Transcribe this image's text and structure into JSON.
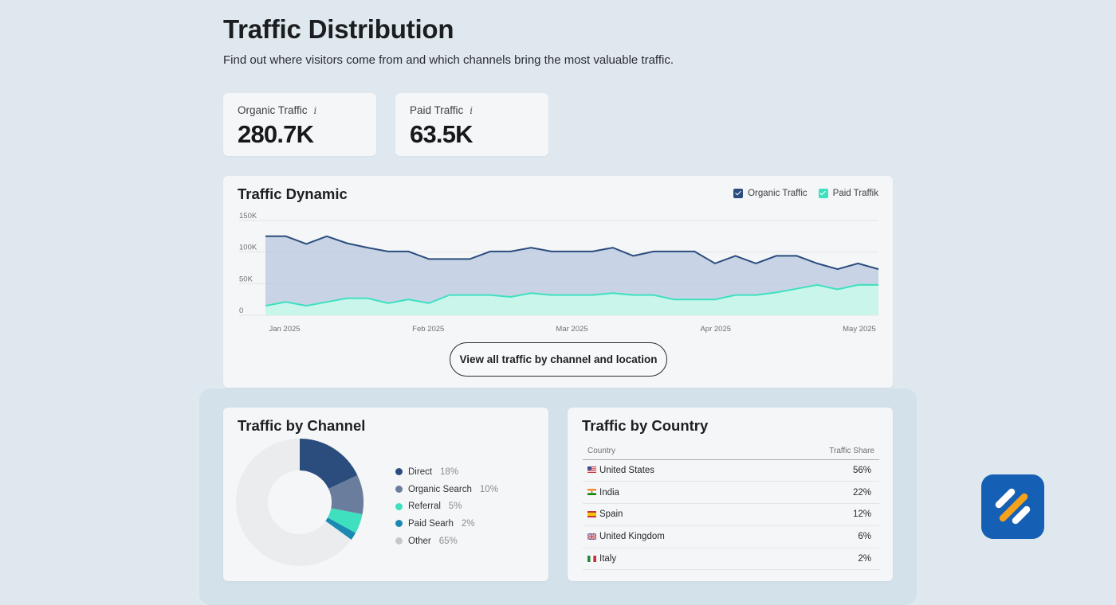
{
  "page": {
    "title": "Traffic Distribution",
    "subtitle": "Find out where visitors come from and which channels bring the most valuable traffic."
  },
  "kpis": [
    {
      "label": "Organic Traffic",
      "value": "280.7K",
      "icon": "info-icon"
    },
    {
      "label": "Paid Traffic",
      "value": "63.5K",
      "icon": "info-icon"
    }
  ],
  "traffic_dynamic": {
    "title": "Traffic Dynamic",
    "legend": [
      {
        "label": "Organic Traffic",
        "color": "#2b4d7e"
      },
      {
        "label": "Paid Traffik",
        "color": "#3ee0c0"
      }
    ],
    "view_button": "View all traffic by channel and location"
  },
  "channels": {
    "title": "Traffic by Channel",
    "items": [
      {
        "name": "Direct",
        "pct": "18%",
        "color": "#2b4d7e"
      },
      {
        "name": "Organic Search",
        "pct": "10%",
        "color": "#6b7d9c"
      },
      {
        "name": "Referral",
        "pct": "5%",
        "color": "#3ee0c0"
      },
      {
        "name": "Paid Searh",
        "pct": "2%",
        "color": "#1a8ab3"
      },
      {
        "name": "Other",
        "pct": "65%",
        "color": "#c4c7cb"
      }
    ]
  },
  "countries": {
    "title": "Traffic by Country",
    "col_country": "Country",
    "col_share": "Traffic Share",
    "rows": [
      {
        "flag": "us-flag-icon",
        "name": "United States",
        "share": "56%"
      },
      {
        "flag": "in-flag-icon",
        "name": "India",
        "share": "22%"
      },
      {
        "flag": "es-flag-icon",
        "name": "Spain",
        "share": "12%"
      },
      {
        "flag": "gb-flag-icon",
        "name": "United Kingdom",
        "share": "6%"
      },
      {
        "flag": "it-flag-icon",
        "name": "Italy",
        "share": "2%"
      }
    ]
  },
  "chart_data": [
    {
      "type": "area",
      "title": "Traffic Dynamic",
      "x_ticks": [
        "Jan 2025",
        "Feb 2025",
        "Mar 2025",
        "Apr 2025",
        "May 2025"
      ],
      "y_ticks": [
        "0",
        "50K",
        "100K",
        "150K"
      ],
      "ylim": [
        0,
        150000
      ],
      "grid": true,
      "legend_position": "top-right",
      "series": [
        {
          "name": "Organic Traffic",
          "color": "#2b4d7e",
          "values": [
            125000,
            125000,
            113000,
            125000,
            114000,
            107000,
            101000,
            101000,
            89000,
            89000,
            89000,
            101000,
            101000,
            107000,
            101000,
            101000,
            101000,
            107000,
            94000,
            101000,
            101000,
            101000,
            82000,
            94000,
            82000,
            94000,
            94000,
            82000,
            73000,
            82000,
            73000
          ]
        },
        {
          "name": "Paid Traffik",
          "color": "#3ee0c0",
          "values": [
            15000,
            21000,
            15000,
            21000,
            27000,
            27000,
            19000,
            25000,
            19000,
            32000,
            32000,
            32000,
            29000,
            35000,
            32000,
            32000,
            32000,
            35000,
            32000,
            32000,
            25000,
            25000,
            25000,
            32000,
            32000,
            36000,
            42000,
            48000,
            41000,
            48000,
            48000
          ]
        }
      ]
    },
    {
      "type": "pie",
      "title": "Traffic by Channel",
      "categories": [
        "Direct",
        "Organic Search",
        "Referral",
        "Paid Searh",
        "Other"
      ],
      "values": [
        18,
        10,
        5,
        2,
        65
      ]
    }
  ]
}
